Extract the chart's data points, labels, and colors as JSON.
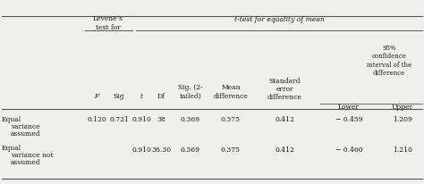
{
  "bg_color": "#f0f0eb",
  "text_color": "#1a1a1a",
  "line_color": "#555555",
  "font_size": 5.5,
  "levenes_header": "Levene’s\ntest for",
  "ttest_header": "t-test for equality of mean",
  "conf_header": "95%\nconfidence\ninterval of the\ndifference",
  "col_headers": [
    "F",
    "Sig",
    "t",
    "Df",
    "Sig. (2-\ntailed)",
    "Mean\ndifference",
    "Standard\nerror\ndifference",
    "Lower",
    "Upper"
  ],
  "row1_label": [
    "Equal",
    "variance",
    "assumed"
  ],
  "row2_label": [
    "Equal",
    "variance not",
    "assumed"
  ],
  "row1_vals": [
    "0.120",
    "0.721",
    "0.910",
    "38",
    "0.369",
    "0.375",
    "0.412",
    "− 0.459",
    "1.209"
  ],
  "row2_vals": [
    "",
    "",
    "0.910",
    "36.30",
    "0.369",
    "0.375",
    "0.412",
    "− 0.460",
    "1.210"
  ],
  "figsize": [
    4.74,
    2.06
  ],
  "dpi": 100
}
